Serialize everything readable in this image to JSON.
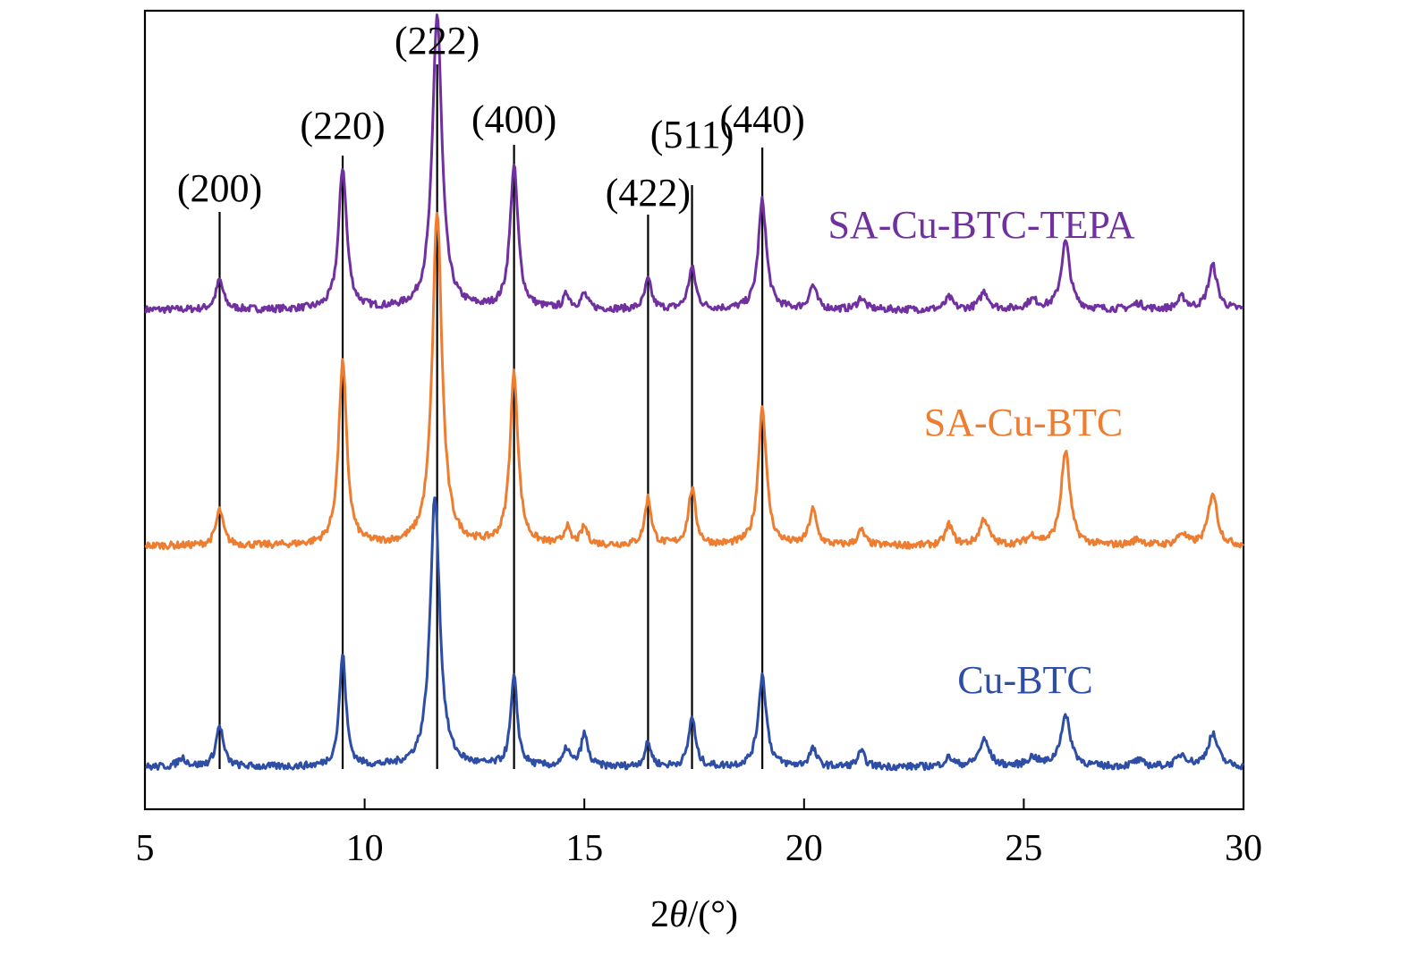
{
  "chart_data": {
    "type": "line",
    "title": "",
    "xlabel": "2θ/(°)",
    "xlabel_parts": {
      "prefix": "2",
      "italic": "θ",
      "suffix": "/(°)"
    },
    "ylabel": "",
    "xlim": [
      5,
      30
    ],
    "xticks": [
      5,
      10,
      15,
      20,
      25,
      30
    ],
    "y_axis_labels": false,
    "grid": false,
    "legend": "inline labels",
    "reflections": [
      {
        "label": "(200)",
        "x": 6.7
      },
      {
        "label": "(220)",
        "x": 9.5
      },
      {
        "label": "(222)",
        "x": 11.65
      },
      {
        "label": "(400)",
        "x": 13.4
      },
      {
        "label": "(422)",
        "x": 16.45
      },
      {
        "label": "(511)",
        "x": 17.45
      },
      {
        "label": "(440)",
        "x": 19.05
      }
    ],
    "series": [
      {
        "name": "SA-Cu-BTC-TEPA",
        "color": "#7030a0",
        "offset": 1.55,
        "baseline_noise": 0.012,
        "peaks": [
          {
            "x": 6.7,
            "h": 0.1,
            "w": 0.1
          },
          {
            "x": 9.5,
            "h": 0.48,
            "w": 0.11
          },
          {
            "x": 11.65,
            "h": 1.0,
            "w": 0.13
          },
          {
            "x": 13.4,
            "h": 0.48,
            "w": 0.11
          },
          {
            "x": 14.6,
            "h": 0.05,
            "w": 0.08
          },
          {
            "x": 15.0,
            "h": 0.05,
            "w": 0.09
          },
          {
            "x": 16.45,
            "h": 0.1,
            "w": 0.09
          },
          {
            "x": 17.45,
            "h": 0.14,
            "w": 0.1
          },
          {
            "x": 19.05,
            "h": 0.37,
            "w": 0.11
          },
          {
            "x": 20.2,
            "h": 0.08,
            "w": 0.1
          },
          {
            "x": 21.3,
            "h": 0.04,
            "w": 0.1
          },
          {
            "x": 23.3,
            "h": 0.04,
            "w": 0.1
          },
          {
            "x": 24.1,
            "h": 0.06,
            "w": 0.12
          },
          {
            "x": 25.2,
            "h": 0.03,
            "w": 0.15
          },
          {
            "x": 25.95,
            "h": 0.23,
            "w": 0.12
          },
          {
            "x": 27.6,
            "h": 0.02,
            "w": 0.15
          },
          {
            "x": 28.6,
            "h": 0.04,
            "w": 0.12
          },
          {
            "x": 29.3,
            "h": 0.15,
            "w": 0.12
          }
        ]
      },
      {
        "name": "SA-Cu-BTC",
        "color": "#ed7d31",
        "offset": 0.75,
        "baseline_noise": 0.012,
        "peaks": [
          {
            "x": 6.7,
            "h": 0.12,
            "w": 0.1
          },
          {
            "x": 9.5,
            "h": 0.62,
            "w": 0.11
          },
          {
            "x": 11.65,
            "h": 1.13,
            "w": 0.13
          },
          {
            "x": 13.4,
            "h": 0.58,
            "w": 0.11
          },
          {
            "x": 14.6,
            "h": 0.06,
            "w": 0.08
          },
          {
            "x": 15.0,
            "h": 0.06,
            "w": 0.09
          },
          {
            "x": 16.45,
            "h": 0.16,
            "w": 0.09
          },
          {
            "x": 17.45,
            "h": 0.19,
            "w": 0.1
          },
          {
            "x": 19.05,
            "h": 0.47,
            "w": 0.11
          },
          {
            "x": 20.2,
            "h": 0.12,
            "w": 0.1
          },
          {
            "x": 21.3,
            "h": 0.05,
            "w": 0.1
          },
          {
            "x": 23.3,
            "h": 0.07,
            "w": 0.1
          },
          {
            "x": 24.1,
            "h": 0.09,
            "w": 0.12
          },
          {
            "x": 25.2,
            "h": 0.03,
            "w": 0.15
          },
          {
            "x": 25.95,
            "h": 0.32,
            "w": 0.12
          },
          {
            "x": 27.6,
            "h": 0.02,
            "w": 0.15
          },
          {
            "x": 28.6,
            "h": 0.04,
            "w": 0.12
          },
          {
            "x": 29.3,
            "h": 0.18,
            "w": 0.12
          }
        ]
      },
      {
        "name": "Cu-BTC",
        "color": "#2e4ea5",
        "offset": 0.0,
        "baseline_noise": 0.012,
        "peaks": [
          {
            "x": 5.85,
            "h": 0.03,
            "w": 0.12
          },
          {
            "x": 6.7,
            "h": 0.14,
            "w": 0.1
          },
          {
            "x": 9.5,
            "h": 0.38,
            "w": 0.09
          },
          {
            "x": 11.6,
            "h": 0.92,
            "w": 0.13
          },
          {
            "x": 13.4,
            "h": 0.3,
            "w": 0.09
          },
          {
            "x": 14.6,
            "h": 0.06,
            "w": 0.08
          },
          {
            "x": 15.0,
            "h": 0.11,
            "w": 0.09
          },
          {
            "x": 16.45,
            "h": 0.08,
            "w": 0.09
          },
          {
            "x": 17.45,
            "h": 0.17,
            "w": 0.09
          },
          {
            "x": 19.05,
            "h": 0.31,
            "w": 0.11
          },
          {
            "x": 20.2,
            "h": 0.06,
            "w": 0.1
          },
          {
            "x": 21.3,
            "h": 0.05,
            "w": 0.1
          },
          {
            "x": 23.3,
            "h": 0.03,
            "w": 0.12
          },
          {
            "x": 24.1,
            "h": 0.09,
            "w": 0.14
          },
          {
            "x": 25.2,
            "h": 0.03,
            "w": 0.15
          },
          {
            "x": 25.95,
            "h": 0.17,
            "w": 0.14
          },
          {
            "x": 27.6,
            "h": 0.02,
            "w": 0.15
          },
          {
            "x": 28.6,
            "h": 0.04,
            "w": 0.14
          },
          {
            "x": 29.3,
            "h": 0.11,
            "w": 0.14
          }
        ]
      }
    ]
  }
}
